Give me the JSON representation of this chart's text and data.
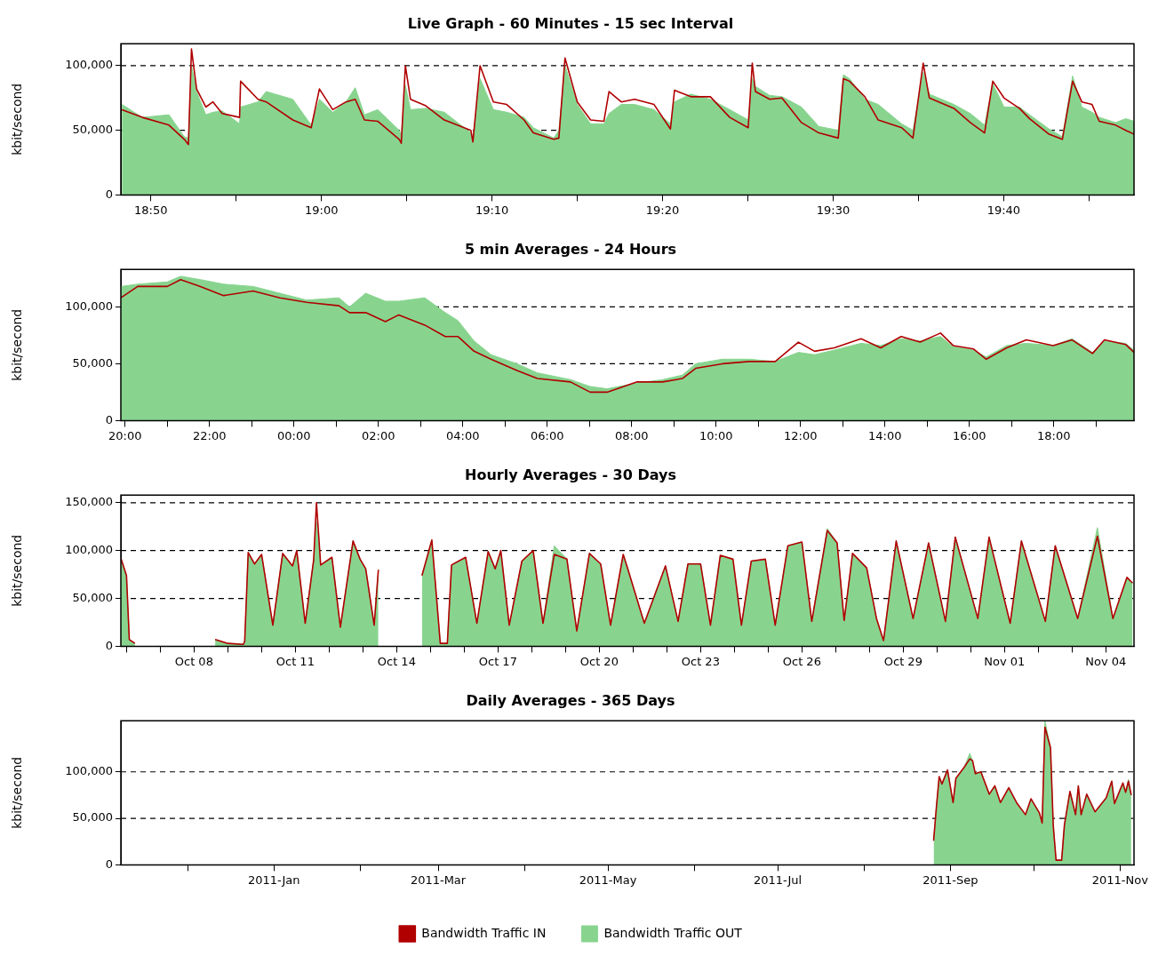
{
  "chart_data": [
    {
      "type": "area",
      "title": "Live Graph - 60 Minutes - 15 sec Interval",
      "ylabel": "kbit/second",
      "grid": "y",
      "x": [
        18.805,
        18.825,
        18.851,
        18.866,
        18.87,
        18.873,
        18.878,
        18.887,
        18.894,
        18.903,
        18.92,
        18.921,
        18.938,
        18.946,
        18.972,
        18.99,
        18.998,
        19.011,
        19.024,
        19.033,
        19.042,
        19.055,
        19.076,
        19.078,
        19.082,
        19.087,
        19.102,
        19.12,
        19.146,
        19.148,
        19.155,
        19.168,
        19.181,
        19.198,
        19.207,
        19.227,
        19.232,
        19.238,
        19.25,
        19.263,
        19.276,
        19.281,
        19.293,
        19.306,
        19.325,
        19.341,
        19.345,
        19.361,
        19.38,
        19.399,
        19.417,
        19.421,
        19.424,
        19.438,
        19.45,
        19.469,
        19.486,
        19.505,
        19.51,
        19.516,
        19.531,
        19.544,
        19.567,
        19.578,
        19.588,
        19.594,
        19.618,
        19.634,
        19.648,
        19.656,
        19.667,
        19.682,
        19.692,
        19.711,
        19.724,
        19.734,
        19.743,
        19.753,
        19.76,
        19.776,
        19.786,
        19.794
      ],
      "xlim": [
        18.804,
        19.794
      ],
      "xticks": [
        {
          "value": 18.8333,
          "label": "18:50"
        },
        {
          "value": 18.9167,
          "label": null
        },
        {
          "value": 19,
          "label": "19:00"
        },
        {
          "value": 19.0833,
          "label": null
        },
        {
          "value": 19.1667,
          "label": "19:10"
        },
        {
          "value": 19.25,
          "label": null
        },
        {
          "value": 19.3333,
          "label": "19:20"
        },
        {
          "value": 19.4167,
          "label": null
        },
        {
          "value": 19.5,
          "label": "19:30"
        },
        {
          "value": 19.5833,
          "label": null
        },
        {
          "value": 19.6667,
          "label": "19:40"
        },
        {
          "value": 19.75,
          "label": null
        }
      ],
      "ylim": [
        0,
        117000
      ],
      "yticks": [
        {
          "value": 0,
          "label": "0"
        },
        {
          "value": 50000,
          "label": "50,000"
        },
        {
          "value": 100000,
          "label": "100,000"
        }
      ],
      "series": [
        {
          "type": "line",
          "color": "#b00000",
          "values": [
            66000,
            60000,
            54000,
            43000,
            39000,
            113000,
            82000,
            68000,
            72000,
            63000,
            60000,
            88000,
            74000,
            72000,
            58000,
            52000,
            82000,
            66000,
            72000,
            74000,
            58000,
            57000,
            43000,
            40000,
            100000,
            74000,
            69000,
            58000,
            50000,
            41000,
            100000,
            72000,
            70000,
            58000,
            48000,
            43000,
            44000,
            106000,
            72000,
            58000,
            57000,
            80000,
            72000,
            74000,
            70000,
            51000,
            81000,
            76000,
            76000,
            60000,
            52000,
            102000,
            80000,
            74000,
            75000,
            56000,
            48000,
            44000,
            90000,
            88000,
            76000,
            58000,
            52000,
            44000,
            102000,
            75000,
            67000,
            56000,
            48000,
            88000,
            75000,
            67000,
            59000,
            47000,
            43000,
            88000,
            72000,
            70000,
            57000,
            54000,
            50000,
            47000
          ]
        },
        {
          "type": "area",
          "color": "#88d48f",
          "values": [
            70000,
            60000,
            62000,
            45000,
            44000,
            100000,
            80000,
            62000,
            64000,
            65000,
            55000,
            68000,
            72000,
            80000,
            74000,
            54000,
            74000,
            64000,
            72000,
            83000,
            62000,
            66000,
            50000,
            46000,
            85000,
            66000,
            67000,
            64000,
            48000,
            44000,
            90000,
            66000,
            64000,
            60000,
            52000,
            44000,
            50000,
            100000,
            70000,
            55000,
            55000,
            63000,
            70000,
            70000,
            66000,
            55000,
            72000,
            78000,
            74000,
            66000,
            58000,
            90000,
            84000,
            77000,
            76000,
            68000,
            53000,
            50000,
            93000,
            90000,
            74000,
            70000,
            55000,
            50000,
            95000,
            78000,
            70000,
            63000,
            54000,
            86000,
            68000,
            68000,
            62000,
            51000,
            45000,
            92000,
            68000,
            64000,
            60000,
            56000,
            59000,
            57000
          ]
        }
      ]
    },
    {
      "type": "area",
      "title": "5 min Averages - 24 Hours",
      "ylabel": "kbit/second",
      "grid": "y",
      "x": [
        "2011-11-03T19:54",
        "2011-11-03T20:18",
        "2011-11-03T21:00",
        "2011-11-03T21:19",
        "2011-11-03T21:47",
        "2011-11-03T22:20",
        "2011-11-03T23:02",
        "2011-11-03T23:40",
        "2011-11-04T00:18",
        "2011-11-04T01:04",
        "2011-11-04T01:19",
        "2011-11-04T01:42",
        "2011-11-04T02:10",
        "2011-11-04T02:29",
        "2011-11-04T03:06",
        "2011-11-04T03:35",
        "2011-11-04T03:53",
        "2011-11-04T04:16",
        "2011-11-04T04:40",
        "2011-11-04T05:17",
        "2011-11-04T05:46",
        "2011-11-04T06:33",
        "2011-11-04T07:01",
        "2011-11-04T07:25",
        "2011-11-04T08:07",
        "2011-11-04T08:44",
        "2011-11-04T09:12",
        "2011-11-04T09:31",
        "2011-11-04T10:09",
        "2011-11-04T10:47",
        "2011-11-04T11:24",
        "2011-11-04T11:57",
        "2011-11-04T12:20",
        "2011-11-04T12:48",
        "2011-11-04T13:26",
        "2011-11-04T13:54",
        "2011-11-04T14:23",
        "2011-11-04T14:50",
        "2011-11-04T15:19",
        "2011-11-04T15:37",
        "2011-11-04T16:06",
        "2011-11-04T16:24",
        "2011-11-04T16:53",
        "2011-11-04T17:21",
        "2011-11-04T17:59",
        "2011-11-04T18:26",
        "2011-11-04T18:55",
        "2011-11-04T19:12",
        "2011-11-04T19:42",
        "2011-11-04T19:54"
      ],
      "xlim": [
        "2011-11-03T19:54",
        "2011-11-04T19:54"
      ],
      "xticks": [
        {
          "value": "2011-11-03T20:00",
          "label": "20:00"
        },
        {
          "value": "2011-11-03T21:00",
          "label": null
        },
        {
          "value": "2011-11-03T22:00",
          "label": "22:00"
        },
        {
          "value": "2011-11-03T23:00",
          "label": null
        },
        {
          "value": "2011-11-04T00:00",
          "label": "00:00"
        },
        {
          "value": "2011-11-04T01:00",
          "label": null
        },
        {
          "value": "2011-11-04T02:00",
          "label": "02:00"
        },
        {
          "value": "2011-11-04T03:00",
          "label": null
        },
        {
          "value": "2011-11-04T04:00",
          "label": "04:00"
        },
        {
          "value": "2011-11-04T05:00",
          "label": null
        },
        {
          "value": "2011-11-04T06:00",
          "label": "06:00"
        },
        {
          "value": "2011-11-04T07:00",
          "label": null
        },
        {
          "value": "2011-11-04T08:00",
          "label": "08:00"
        },
        {
          "value": "2011-11-04T09:00",
          "label": null
        },
        {
          "value": "2011-11-04T10:00",
          "label": "10:00"
        },
        {
          "value": "2011-11-04T11:00",
          "label": null
        },
        {
          "value": "2011-11-04T12:00",
          "label": "12:00"
        },
        {
          "value": "2011-11-04T13:00",
          "label": null
        },
        {
          "value": "2011-11-04T14:00",
          "label": "14:00"
        },
        {
          "value": "2011-11-04T15:00",
          "label": null
        },
        {
          "value": "2011-11-04T16:00",
          "label": "16:00"
        },
        {
          "value": "2011-11-04T17:00",
          "label": null
        },
        {
          "value": "2011-11-04T18:00",
          "label": "18:00"
        },
        {
          "value": "2011-11-04T19:00",
          "label": null
        }
      ],
      "ylim": [
        0,
        133000
      ],
      "yticks": [
        {
          "value": 0,
          "label": "0"
        },
        {
          "value": 50000,
          "label": "50,000"
        },
        {
          "value": 100000,
          "label": "100,000"
        }
      ],
      "series": [
        {
          "type": "line",
          "color": "#b00000",
          "values": [
            108000,
            118000,
            118000,
            124000,
            118000,
            110000,
            114000,
            108000,
            104000,
            101000,
            95000,
            95000,
            87000,
            93000,
            84000,
            74000,
            74000,
            61000,
            54000,
            44000,
            37000,
            34000,
            25000,
            25000,
            34000,
            34000,
            37000,
            46000,
            50000,
            52000,
            52000,
            69000,
            61000,
            64000,
            72000,
            64000,
            74000,
            69000,
            77000,
            66000,
            63000,
            54000,
            64000,
            71000,
            66000,
            71000,
            59000,
            71000,
            67000,
            60000
          ]
        },
        {
          "type": "area",
          "color": "#88d48f",
          "values": [
            118000,
            120000,
            122000,
            127000,
            124000,
            120000,
            118000,
            112000,
            106000,
            108000,
            100000,
            112000,
            105000,
            105000,
            108000,
            95000,
            88000,
            70000,
            58000,
            50000,
            42000,
            36000,
            30000,
            28000,
            33000,
            36000,
            40000,
            50000,
            54000,
            54000,
            52000,
            60000,
            58000,
            62000,
            68000,
            66000,
            72000,
            70000,
            74000,
            65000,
            62000,
            56000,
            66000,
            68000,
            66000,
            72000,
            60000,
            70000,
            68000,
            62000
          ]
        }
      ]
    },
    {
      "type": "area",
      "title": "Hourly Averages - 30 Days",
      "ylabel": "kbit/second",
      "grid": "y",
      "x": [
        "2011-10-05T20:00",
        "2011-10-06T00:00",
        "2011-10-06T02:00",
        "2011-10-06T06:00",
        "2011-10-07T12:00",
        "2011-10-08T15:00",
        "2011-10-09T00:00",
        "2011-10-09T11:00",
        "2011-10-09T12:00",
        "2011-10-09T14:30",
        "2011-10-09T19:00",
        "2011-10-10T00:00",
        "2011-10-10T08:00",
        "2011-10-10T15:00",
        "2011-10-10T22:00",
        "2011-10-11T01:00",
        "2011-10-11T07:00",
        "2011-10-11T13:00",
        "2011-10-11T15:00",
        "2011-10-11T18:00",
        "2011-10-12T02:00",
        "2011-10-12T08:00",
        "2011-10-12T17:00",
        "2011-10-12T22:00",
        "2011-10-13T02:00",
        "2011-10-13T08:00",
        "2011-10-13T11:00",
        "2011-10-14T00:00",
        "2011-10-14T18:00",
        "2011-10-15T01:00",
        "2011-10-15T07:00",
        "2011-10-15T12:00",
        "2011-10-15T15:00",
        "2011-10-16T01:00",
        "2011-10-16T09:00",
        "2011-10-16T17:00",
        "2011-10-16T22:00",
        "2011-10-17T02:00",
        "2011-10-17T08:00",
        "2011-10-17T17:00",
        "2011-10-18T01:00",
        "2011-10-18T08:00",
        "2011-10-18T16:00",
        "2011-10-19T01:00",
        "2011-10-19T08:00",
        "2011-10-19T17:00",
        "2011-10-20T01:00",
        "2011-10-20T08:00",
        "2011-10-20T17:00",
        "2011-10-20T20:00",
        "2011-10-21T08:00",
        "2011-10-21T23:00",
        "2011-10-22T08:00",
        "2011-10-22T15:00",
        "2011-10-23T00:00",
        "2011-10-23T07:00",
        "2011-10-23T14:00",
        "2011-10-23T23:00",
        "2011-10-24T05:00",
        "2011-10-24T12:00",
        "2011-10-24T22:00",
        "2011-10-25T05:00",
        "2011-10-25T14:00",
        "2011-10-26T00:00",
        "2011-10-26T07:00",
        "2011-10-26T18:00",
        "2011-10-27T01:00",
        "2011-10-27T06:00",
        "2011-10-27T12:00",
        "2011-10-27T22:00",
        "2011-10-28T05:00",
        "2011-10-28T10:00",
        "2011-10-28T19:00",
        "2011-10-29T07:00",
        "2011-10-29T18:00",
        "2011-10-30T06:00",
        "2011-10-30T13:00",
        "2011-10-31T05:00",
        "2011-10-31T13:00",
        "2011-11-01T04:00",
        "2011-11-01T12:00",
        "2011-11-02T05:00",
        "2011-11-02T12:00",
        "2011-11-03T04:00",
        "2011-11-03T18:00",
        "2011-11-04T05:00",
        "2011-11-04T15:00",
        "2011-11-04T19:00"
      ],
      "xlim": [
        "2011-10-05T20:00",
        "2011-11-04T20:00"
      ],
      "xticks": [
        {
          "value": "2011-10-06",
          "label": null
        },
        {
          "value": "2011-10-07",
          "label": null
        },
        {
          "value": "2011-10-08",
          "label": "Oct 08"
        },
        {
          "value": "2011-10-09",
          "label": null
        },
        {
          "value": "2011-10-10",
          "label": null
        },
        {
          "value": "2011-10-11",
          "label": "Oct 11"
        },
        {
          "value": "2011-10-12",
          "label": null
        },
        {
          "value": "2011-10-13",
          "label": null
        },
        {
          "value": "2011-10-14",
          "label": "Oct 14"
        },
        {
          "value": "2011-10-15",
          "label": null
        },
        {
          "value": "2011-10-16",
          "label": null
        },
        {
          "value": "2011-10-17",
          "label": "Oct 17"
        },
        {
          "value": "2011-10-18",
          "label": null
        },
        {
          "value": "2011-10-19",
          "label": null
        },
        {
          "value": "2011-10-20",
          "label": "Oct 20"
        },
        {
          "value": "2011-10-21",
          "label": null
        },
        {
          "value": "2011-10-22",
          "label": null
        },
        {
          "value": "2011-10-23",
          "label": "Oct 23"
        },
        {
          "value": "2011-10-24",
          "label": null
        },
        {
          "value": "2011-10-25",
          "label": null
        },
        {
          "value": "2011-10-26",
          "label": "Oct 26"
        },
        {
          "value": "2011-10-27",
          "label": null
        },
        {
          "value": "2011-10-28",
          "label": null
        },
        {
          "value": "2011-10-29",
          "label": "Oct 29"
        },
        {
          "value": "2011-10-30",
          "label": null
        },
        {
          "value": "2011-10-31",
          "label": null
        },
        {
          "value": "2011-11-01",
          "label": "Nov 01"
        },
        {
          "value": "2011-11-02",
          "label": null
        },
        {
          "value": "2011-11-03",
          "label": null
        },
        {
          "value": "2011-11-04",
          "label": "Nov 04"
        }
      ],
      "ylim": [
        0,
        158000
      ],
      "yticks": [
        {
          "value": 0,
          "label": "0"
        },
        {
          "value": 50000,
          "label": "50,000"
        },
        {
          "value": 100000,
          "label": "100,000"
        },
        {
          "value": 150000,
          "label": "150,000"
        }
      ],
      "series": [
        {
          "type": "line",
          "color": "#b00000",
          "values": [
            92000,
            74000,
            7000,
            3000,
            null,
            7000,
            3000,
            2000,
            5000,
            98000,
            86000,
            96000,
            22000,
            97000,
            84000,
            100000,
            24000,
            90000,
            150000,
            85000,
            93000,
            20000,
            110000,
            91000,
            81000,
            22000,
            80000,
            null,
            74000,
            111000,
            3000,
            3000,
            85000,
            93000,
            24000,
            99000,
            81000,
            100000,
            22000,
            89000,
            100000,
            24000,
            96000,
            91000,
            16000,
            97000,
            86000,
            22000,
            96000,
            82000,
            24000,
            84000,
            26000,
            86000,
            86000,
            22000,
            95000,
            91000,
            22000,
            89000,
            91000,
            22000,
            105000,
            109000,
            26000,
            121000,
            108000,
            27000,
            97000,
            82000,
            29000,
            6000,
            110000,
            29000,
            108000,
            26000,
            114000,
            29000,
            114000,
            24000,
            110000,
            26000,
            105000,
            29000,
            115000,
            29000,
            72000,
            66000
          ]
        },
        {
          "type": "area",
          "color": "#88d48f",
          "values": [
            92000,
            74000,
            7000,
            3000,
            null,
            7000,
            3000,
            2000,
            5000,
            98000,
            86000,
            96000,
            22000,
            97000,
            84000,
            100000,
            24000,
            90000,
            130000,
            85000,
            93000,
            20000,
            110000,
            91000,
            81000,
            22000,
            80000,
            null,
            74000,
            111000,
            3000,
            3000,
            85000,
            93000,
            24000,
            99000,
            81000,
            100000,
            22000,
            89000,
            100000,
            24000,
            105000,
            91000,
            16000,
            97000,
            86000,
            22000,
            96000,
            82000,
            24000,
            84000,
            26000,
            86000,
            86000,
            22000,
            95000,
            91000,
            22000,
            89000,
            91000,
            22000,
            105000,
            109000,
            26000,
            123000,
            108000,
            27000,
            97000,
            82000,
            29000,
            6000,
            110000,
            29000,
            108000,
            26000,
            114000,
            29000,
            114000,
            24000,
            110000,
            26000,
            105000,
            29000,
            124000,
            29000,
            72000,
            66000
          ]
        }
      ]
    },
    {
      "type": "area",
      "title": "Daily Averages - 365 Days",
      "ylabel": "kbit/second",
      "grid": "y",
      "legend": "bottom",
      "x": [
        "2011-08-26",
        "2011-08-27",
        "2011-08-28",
        "2011-08-29",
        "2011-08-31",
        "2011-09-02",
        "2011-09-03",
        "2011-09-06",
        "2011-09-08",
        "2011-09-09",
        "2011-09-10",
        "2011-09-12",
        "2011-09-15",
        "2011-09-17",
        "2011-09-19",
        "2011-09-22",
        "2011-09-25",
        "2011-09-28",
        "2011-09-30",
        "2011-10-03",
        "2011-10-04",
        "2011-10-05",
        "2011-10-07",
        "2011-10-08",
        "2011-10-09",
        "2011-10-11",
        "2011-10-12",
        "2011-10-14",
        "2011-10-16",
        "2011-10-17",
        "2011-10-18",
        "2011-10-20",
        "2011-10-23",
        "2011-10-27",
        "2011-10-29",
        "2011-10-30",
        "2011-11-02",
        "2011-11-03",
        "2011-11-04",
        "2011-11-05"
      ],
      "xlim": [
        "2010-11-07",
        "2011-11-06"
      ],
      "xticks": [
        {
          "value": "2010-12-01",
          "label": null
        },
        {
          "value": "2011-01-01",
          "label": "2011-Jan"
        },
        {
          "value": "2011-02-01",
          "label": null
        },
        {
          "value": "2011-03-01",
          "label": "2011-Mar"
        },
        {
          "value": "2011-04-01",
          "label": null
        },
        {
          "value": "2011-05-01",
          "label": "2011-May"
        },
        {
          "value": "2011-06-01",
          "label": null
        },
        {
          "value": "2011-07-01",
          "label": "2011-Jul"
        },
        {
          "value": "2011-08-01",
          "label": null
        },
        {
          "value": "2011-09-01",
          "label": "2011-Sep"
        },
        {
          "value": "2011-10-01",
          "label": null
        },
        {
          "value": "2011-11-01",
          "label": "2011-Nov"
        }
      ],
      "ylim": [
        0,
        155000
      ],
      "yticks": [
        {
          "value": 0,
          "label": "0"
        },
        {
          "value": 50000,
          "label": "50,000"
        },
        {
          "value": 100000,
          "label": "100,000"
        }
      ],
      "series": [
        {
          "type": "line",
          "name": "Bandwidth Traffic IN",
          "color": "#b00000",
          "values": [
            26000,
            62000,
            95000,
            87000,
            102000,
            67000,
            93000,
            105000,
            114000,
            112000,
            98000,
            100000,
            76000,
            85000,
            67000,
            83000,
            66000,
            54000,
            71000,
            56000,
            45000,
            148000,
            126000,
            42000,
            5000,
            5000,
            43000,
            79000,
            54000,
            85000,
            54000,
            76000,
            57000,
            72000,
            90000,
            66000,
            88000,
            78000,
            90000,
            75000
          ]
        },
        {
          "type": "area",
          "name": "Bandwidth Traffic OUT",
          "color": "#88d48f",
          "values": [
            26000,
            62000,
            95000,
            87000,
            102000,
            67000,
            93000,
            105000,
            120000,
            112000,
            98000,
            100000,
            76000,
            85000,
            67000,
            83000,
            66000,
            54000,
            71000,
            56000,
            45000,
            155000,
            126000,
            42000,
            5000,
            5000,
            43000,
            79000,
            54000,
            85000,
            54000,
            76000,
            57000,
            72000,
            90000,
            66000,
            88000,
            78000,
            92000,
            75000
          ]
        }
      ]
    }
  ]
}
